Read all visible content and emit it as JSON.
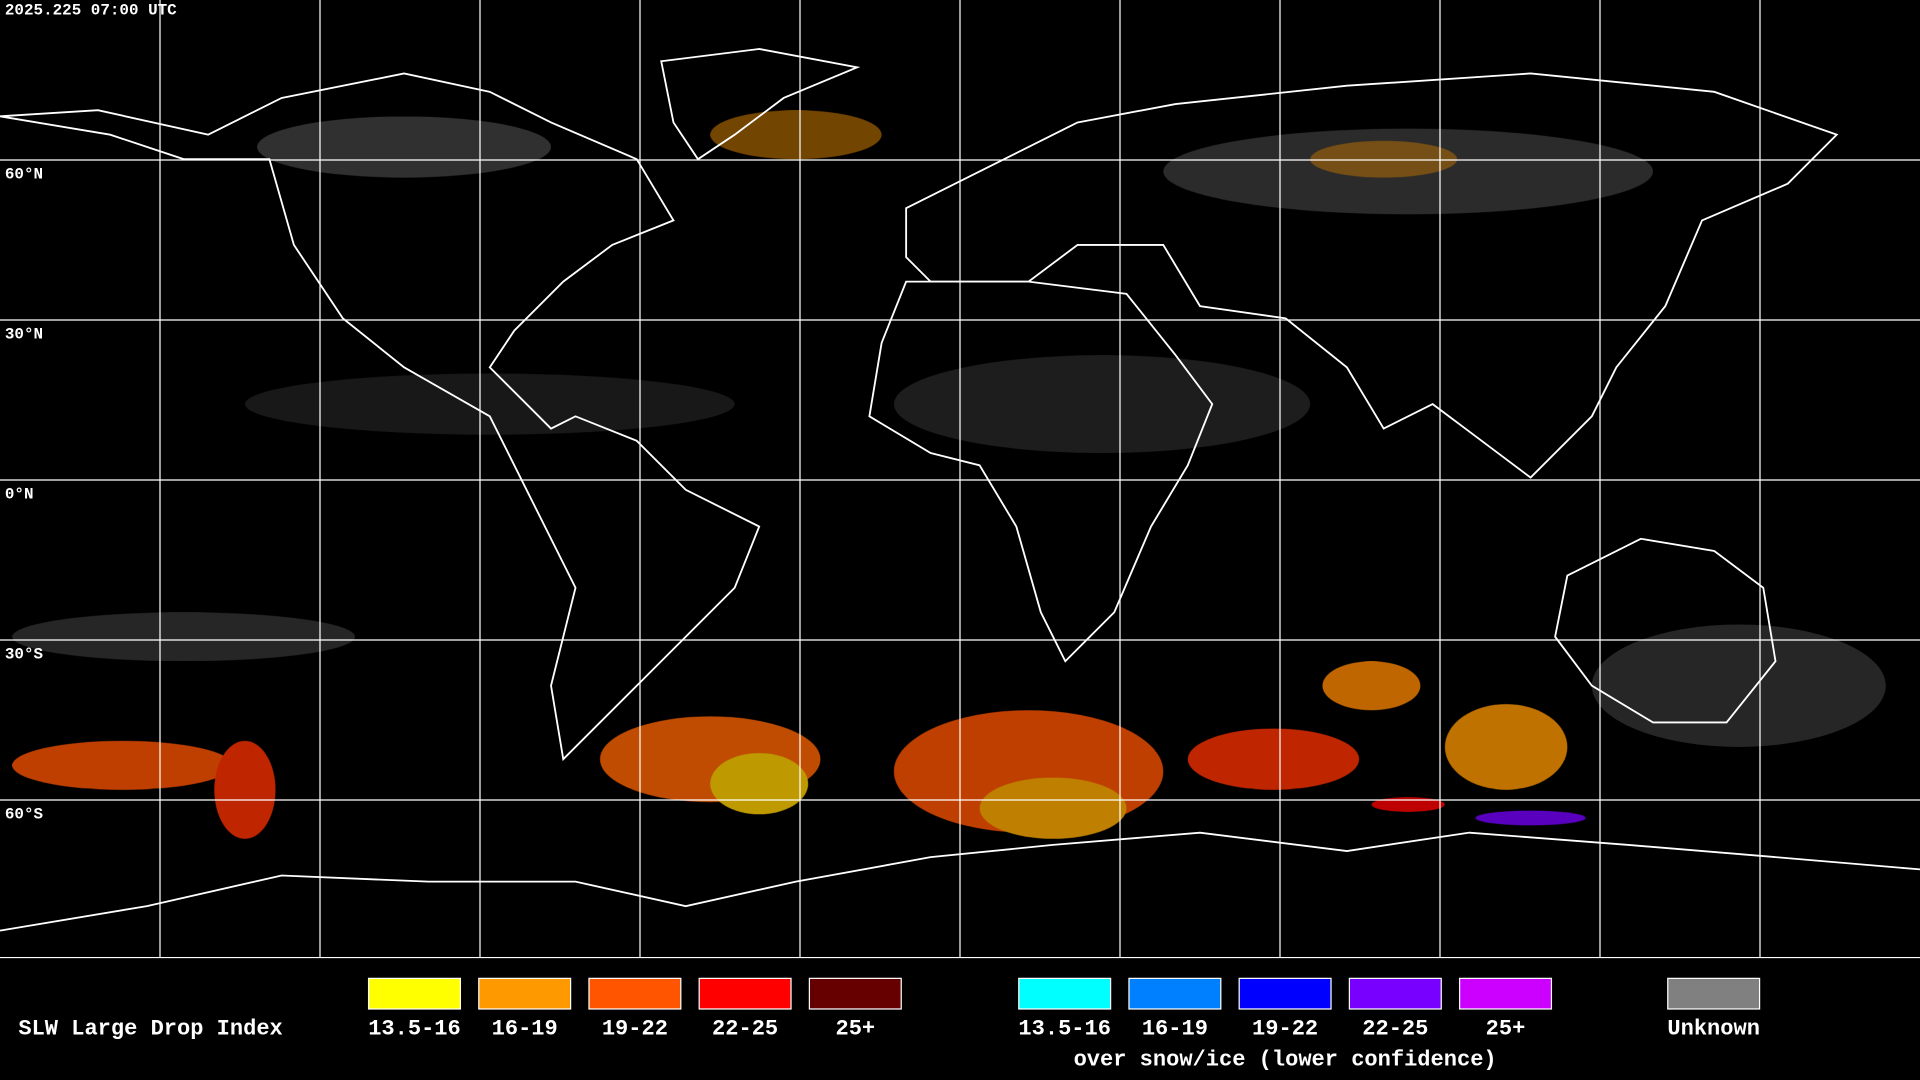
{
  "header": {
    "timestamp": "2025.225 07:00 UTC"
  },
  "latitude_labels": [
    "60°N",
    "30°N",
    "0°N",
    "30°S",
    "60°S"
  ],
  "legend": {
    "title": "SLW Large Drop Index",
    "groups": [
      {
        "items": [
          {
            "label": "13.5-16",
            "color": "#ffff00"
          },
          {
            "label": "16-19",
            "color": "#ff9900"
          },
          {
            "label": "19-22",
            "color": "#ff5500"
          },
          {
            "label": "22-25",
            "color": "#ff0000"
          },
          {
            "label": "25+",
            "color": "#660000"
          }
        ]
      },
      {
        "items": [
          {
            "label": "13.5-16",
            "color": "#00ffff"
          },
          {
            "label": "16-19",
            "color": "#0080ff"
          },
          {
            "label": "19-22",
            "color": "#0000ff"
          },
          {
            "label": "22-25",
            "color": "#7700ff"
          },
          {
            "label": "25+",
            "color": "#cc00ff"
          }
        ],
        "caption": "over snow/ice (lower confidence)"
      },
      {
        "items": [
          {
            "label": "Unknown",
            "color": "#808080"
          }
        ]
      }
    ]
  }
}
